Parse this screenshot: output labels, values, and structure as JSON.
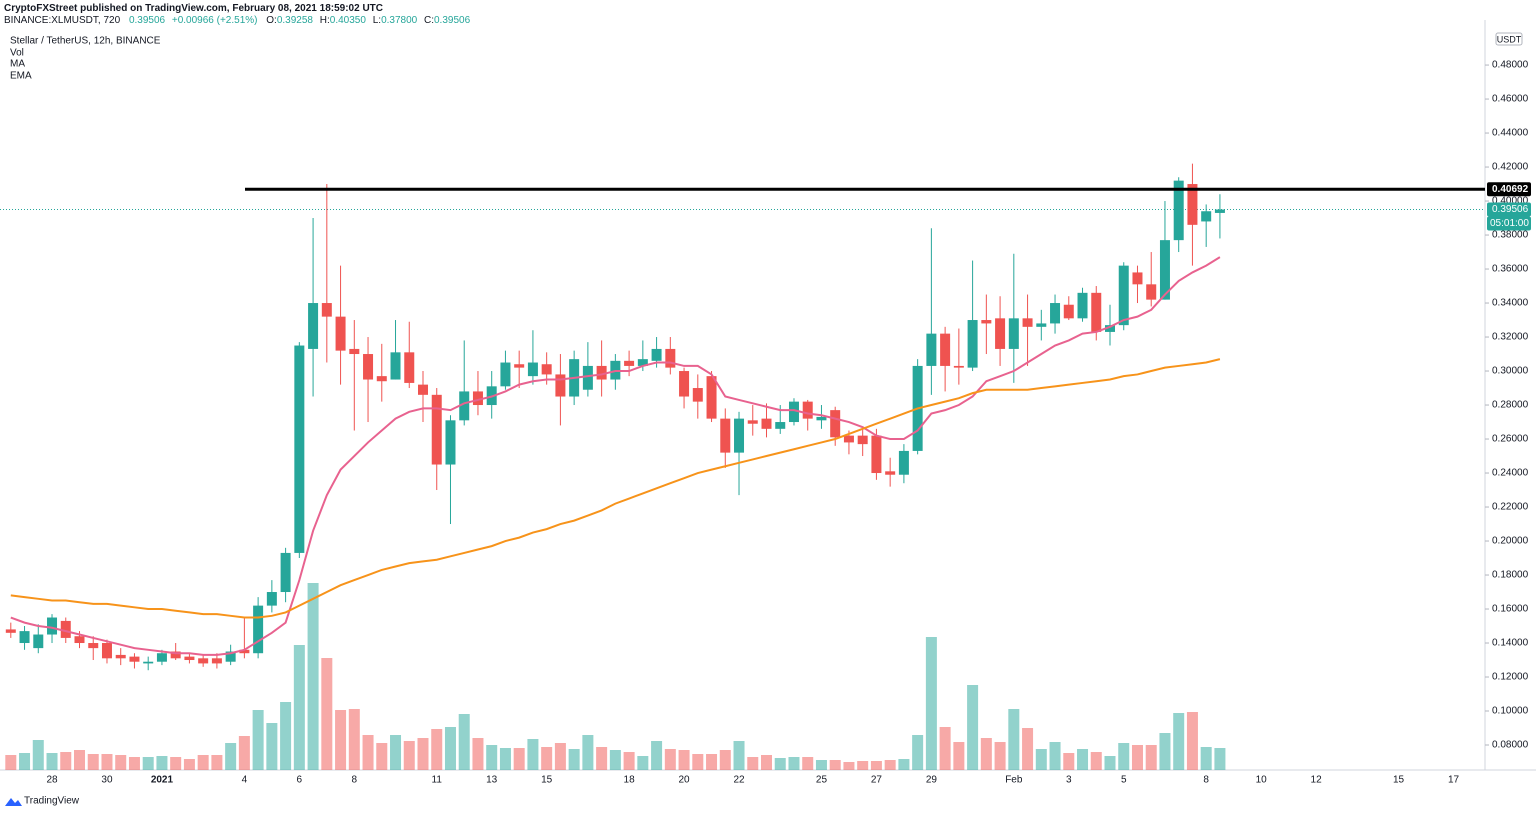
{
  "header": {
    "publisher": "CryptoFXStreet published on TradingView.com, February 08, 2021 18:59:02 UTC",
    "symbol": "BINANCE:XLMUSDT, 720",
    "price": "0.39506",
    "change": "+0.00966 (+2.51%)",
    "ohlc": [
      {
        "label": "O:",
        "value": "0.39258"
      },
      {
        "label": "H:",
        "value": "0.40350"
      },
      {
        "label": "L:",
        "value": "0.37800"
      },
      {
        "label": "C:",
        "value": "0.39506"
      }
    ]
  },
  "footer": {
    "brand": "TradingView"
  },
  "chart_data": {
    "type": "candlestick",
    "title": "Stellar / TetherUS, 12h, BINANCE",
    "volume_label": "Vol",
    "currency": "USDT",
    "up_color": "#26a69a",
    "down_color": "#ef5350",
    "categories": [
      null,
      null,
      null,
      "28",
      null,
      null,
      null,
      "30",
      null,
      null,
      null,
      "2021",
      null,
      null,
      null,
      null,
      null,
      "4",
      null,
      null,
      null,
      "6",
      null,
      null,
      null,
      "8",
      null,
      null,
      null,
      null,
      null,
      "11",
      null,
      null,
      null,
      "13",
      null,
      null,
      null,
      "15",
      null,
      null,
      null,
      null,
      null,
      "18",
      null,
      null,
      null,
      "20",
      null,
      null,
      null,
      "22",
      null,
      null,
      null,
      null,
      null,
      "25",
      null,
      null,
      null,
      "27",
      null,
      null,
      null,
      "29",
      null,
      null,
      null,
      null,
      null,
      "Feb",
      null,
      null,
      null,
      "3",
      null,
      null,
      null,
      "5",
      null,
      null,
      null,
      null,
      null,
      "8",
      null,
      null,
      null,
      "10",
      null,
      null,
      null,
      "12",
      null,
      null,
      null,
      null,
      null,
      "15",
      null,
      null,
      null,
      "17"
    ],
    "open": [
      0.148,
      0.14,
      0.137,
      0.145,
      0.153,
      0.144,
      0.14,
      0.14,
      0.133,
      0.132,
      0.128,
      0.129,
      0.135,
      0.132,
      0.131,
      0.131,
      0.129,
      0.136,
      0.134,
      0.162,
      0.17,
      0.193,
      0.313,
      0.34,
      0.332,
      0.313,
      0.31,
      0.297,
      0.295,
      0.311,
      0.292,
      0.286,
      0.245,
      0.271,
      0.288,
      0.28,
      0.291,
      0.304,
      0.297,
      0.304,
      0.298,
      0.285,
      0.289,
      0.303,
      0.295,
      0.306,
      0.303,
      0.306,
      0.313,
      0.3,
      0.29,
      0.297,
      0.272,
      0.252,
      0.271,
      0.272,
      0.266,
      0.27,
      0.282,
      0.271,
      0.277,
      0.262,
      0.262,
      0.262,
      0.241,
      0.239,
      0.253,
      0.303,
      0.322,
      0.303,
      0.302,
      0.33,
      0.331,
      0.313,
      0.331,
      0.326,
      0.328,
      0.339,
      0.331,
      0.346,
      0.323,
      0.327,
      0.358,
      0.351,
      0.342,
      0.377,
      0.41,
      0.388,
      0.393,
      null,
      null,
      null,
      null,
      null,
      null,
      null,
      null,
      null,
      null,
      null,
      null,
      null,
      null,
      null,
      null,
      null
    ],
    "high": [
      0.152,
      0.15,
      0.151,
      0.157,
      0.155,
      0.147,
      0.144,
      0.142,
      0.137,
      0.134,
      0.132,
      0.136,
      0.14,
      0.134,
      0.133,
      0.134,
      0.139,
      0.155,
      0.167,
      0.177,
      0.196,
      0.317,
      0.39,
      0.41,
      0.362,
      0.33,
      0.32,
      0.316,
      0.33,
      0.329,
      0.3,
      0.29,
      0.274,
      0.318,
      0.3,
      0.3,
      0.312,
      0.312,
      0.324,
      0.311,
      0.31,
      0.312,
      0.317,
      0.318,
      0.31,
      0.312,
      0.318,
      0.32,
      0.32,
      0.302,
      0.298,
      0.3,
      0.278,
      0.276,
      0.28,
      0.281,
      0.28,
      0.284,
      0.283,
      0.28,
      0.279,
      0.265,
      0.266,
      0.266,
      0.249,
      0.257,
      0.307,
      0.384,
      0.326,
      0.325,
      0.365,
      0.345,
      0.344,
      0.369,
      0.345,
      0.336,
      0.345,
      0.344,
      0.349,
      0.35,
      0.339,
      0.364,
      0.362,
      0.37,
      0.4,
      0.414,
      0.422,
      0.398,
      0.404,
      null,
      null,
      null,
      null,
      null,
      null,
      null,
      null,
      null,
      null,
      null,
      null,
      null,
      null,
      null,
      null,
      null
    ],
    "low": [
      0.143,
      0.136,
      0.134,
      0.14,
      0.14,
      0.137,
      0.13,
      0.128,
      0.127,
      0.125,
      0.124,
      0.127,
      0.13,
      0.128,
      0.126,
      0.125,
      0.127,
      0.131,
      0.131,
      0.158,
      0.164,
      0.19,
      0.285,
      0.305,
      0.292,
      0.265,
      0.27,
      0.282,
      0.295,
      0.29,
      0.27,
      0.23,
      0.21,
      0.268,
      0.274,
      0.272,
      0.289,
      0.29,
      0.292,
      0.292,
      0.268,
      0.28,
      0.285,
      0.285,
      0.289,
      0.297,
      0.3,
      0.302,
      0.298,
      0.278,
      0.272,
      0.27,
      0.243,
      0.227,
      0.262,
      0.261,
      0.263,
      0.268,
      0.265,
      0.266,
      0.256,
      0.251,
      0.25,
      0.236,
      0.232,
      0.234,
      0.251,
      0.286,
      0.288,
      0.292,
      0.3,
      0.31,
      0.303,
      0.293,
      0.303,
      0.318,
      0.322,
      0.33,
      0.329,
      0.318,
      0.315,
      0.324,
      0.34,
      0.338,
      0.342,
      0.37,
      0.362,
      0.373,
      0.378,
      null,
      null,
      null,
      null,
      null,
      null,
      null,
      null,
      null,
      null,
      null,
      null,
      null,
      null,
      null,
      null,
      null
    ],
    "close": [
      0.146,
      0.147,
      0.145,
      0.155,
      0.143,
      0.14,
      0.137,
      0.131,
      0.131,
      0.129,
      0.129,
      0.134,
      0.131,
      0.13,
      0.128,
      0.128,
      0.135,
      0.134,
      0.162,
      0.17,
      0.193,
      0.315,
      0.34,
      0.332,
      0.312,
      0.31,
      0.295,
      0.294,
      0.311,
      0.293,
      0.286,
      0.245,
      0.271,
      0.288,
      0.28,
      0.291,
      0.305,
      0.302,
      0.305,
      0.298,
      0.285,
      0.307,
      0.303,
      0.295,
      0.306,
      0.303,
      0.307,
      0.313,
      0.302,
      0.285,
      0.282,
      0.272,
      0.252,
      0.272,
      0.269,
      0.266,
      0.27,
      0.282,
      0.272,
      0.273,
      0.261,
      0.258,
      0.257,
      0.24,
      0.239,
      0.253,
      0.303,
      0.322,
      0.303,
      0.302,
      0.33,
      0.328,
      0.313,
      0.331,
      0.326,
      0.328,
      0.34,
      0.331,
      0.346,
      0.323,
      0.327,
      0.362,
      0.351,
      0.342,
      0.377,
      0.412,
      0.386,
      0.394,
      0.395,
      null,
      null,
      null,
      null,
      null,
      null,
      null,
      null,
      null,
      null,
      null,
      null,
      null,
      null,
      null,
      null,
      null
    ],
    "volume": [
      15,
      17,
      30,
      17,
      18,
      20,
      16,
      16,
      15,
      13,
      13,
      14,
      13,
      11,
      15,
      15,
      27,
      34,
      60,
      47,
      68,
      125,
      187,
      112,
      60,
      61,
      35,
      27,
      35,
      29,
      32,
      41,
      43,
      56,
      32,
      25,
      22,
      22,
      31,
      23,
      27,
      21,
      35,
      23,
      20,
      18,
      14,
      29,
      21,
      20,
      16,
      16,
      20,
      29,
      13,
      15,
      12,
      13,
      13,
      10,
      10,
      8,
      9,
      9,
      10,
      11,
      35,
      133,
      43,
      28,
      85,
      32,
      28,
      61,
      42,
      21,
      28,
      17,
      21,
      18,
      14,
      27,
      25,
      25,
      37,
      57,
      58,
      23,
      22,
      null,
      null,
      null,
      null,
      null,
      null,
      null,
      null,
      null,
      null,
      null,
      null,
      null,
      null,
      null,
      null,
      null
    ],
    "series": [
      {
        "name": "MA",
        "color": "#e8628f",
        "values": [
          0.155,
          0.152,
          0.15,
          0.149,
          0.147,
          0.145,
          0.143,
          0.141,
          0.139,
          0.137,
          0.136,
          0.135,
          0.134,
          0.134,
          0.133,
          0.133,
          0.134,
          0.136,
          0.141,
          0.146,
          0.152,
          0.177,
          0.206,
          0.227,
          0.242,
          0.25,
          0.258,
          0.265,
          0.272,
          0.276,
          0.278,
          0.278,
          0.277,
          0.281,
          0.283,
          0.285,
          0.288,
          0.292,
          0.294,
          0.295,
          0.295,
          0.296,
          0.297,
          0.298,
          0.3,
          0.3,
          0.303,
          0.305,
          0.305,
          0.303,
          0.303,
          0.298,
          0.285,
          0.283,
          0.281,
          0.279,
          0.277,
          0.277,
          0.275,
          0.274,
          0.272,
          0.27,
          0.267,
          0.262,
          0.26,
          0.26,
          0.265,
          0.275,
          0.277,
          0.28,
          0.285,
          0.294,
          0.297,
          0.3,
          0.305,
          0.31,
          0.315,
          0.318,
          0.322,
          0.323,
          0.326,
          0.33,
          0.332,
          0.336,
          0.345,
          0.353,
          0.358,
          0.362,
          0.367,
          null,
          null,
          null,
          null,
          null,
          null,
          null,
          null,
          null,
          null,
          null,
          null,
          null,
          null,
          null,
          null,
          null
        ]
      },
      {
        "name": "EMA",
        "color": "#f7931a",
        "values": [
          0.168,
          0.167,
          0.166,
          0.165,
          0.165,
          0.164,
          0.163,
          0.163,
          0.162,
          0.161,
          0.16,
          0.16,
          0.159,
          0.158,
          0.157,
          0.157,
          0.156,
          0.155,
          0.155,
          0.156,
          0.158,
          0.162,
          0.166,
          0.17,
          0.174,
          0.177,
          0.18,
          0.183,
          0.185,
          0.187,
          0.188,
          0.189,
          0.191,
          0.193,
          0.195,
          0.197,
          0.2,
          0.202,
          0.205,
          0.207,
          0.21,
          0.212,
          0.215,
          0.218,
          0.222,
          0.225,
          0.228,
          0.231,
          0.234,
          0.237,
          0.24,
          0.242,
          0.244,
          0.246,
          0.248,
          0.25,
          0.252,
          0.254,
          0.256,
          0.258,
          0.26,
          0.263,
          0.266,
          0.269,
          0.272,
          0.275,
          0.278,
          0.28,
          0.282,
          0.284,
          0.287,
          0.289,
          0.289,
          0.289,
          0.289,
          0.29,
          0.291,
          0.292,
          0.293,
          0.294,
          0.295,
          0.297,
          0.298,
          0.3,
          0.302,
          0.303,
          0.304,
          0.305,
          0.307,
          null,
          null,
          null,
          null,
          null,
          null,
          null,
          null,
          null,
          null,
          null,
          null,
          null,
          null,
          null,
          null,
          null
        ]
      }
    ],
    "levels": [
      {
        "value": 0.40692,
        "color": "#000000"
      }
    ],
    "last_price": 0.39506,
    "countdown": "05:01:00",
    "ylim": [
      0.0653,
      0.5065
    ],
    "yticks": [
      {
        "value": 0.08,
        "label": "0.08000"
      },
      {
        "value": 0.1,
        "label": "0.10000"
      },
      {
        "value": 0.12,
        "label": "0.12000"
      },
      {
        "value": 0.14,
        "label": "0.14000"
      },
      {
        "value": 0.16,
        "label": "0.16000"
      },
      {
        "value": 0.18,
        "label": "0.18000"
      },
      {
        "value": 0.2,
        "label": "0.20000"
      },
      {
        "value": 0.22,
        "label": "0.22000"
      },
      {
        "value": 0.24,
        "label": "0.24000"
      },
      {
        "value": 0.26,
        "label": "0.26000"
      },
      {
        "value": 0.28,
        "label": "0.28000"
      },
      {
        "value": 0.3,
        "label": "0.30000"
      },
      {
        "value": 0.32,
        "label": "0.32000"
      },
      {
        "value": 0.34,
        "label": "0.34000"
      },
      {
        "value": 0.36,
        "label": "0.36000"
      },
      {
        "value": 0.38,
        "label": "0.38000"
      },
      {
        "value": 0.4,
        "label": "0.40000"
      },
      {
        "value": 0.42,
        "label": "0.42000"
      },
      {
        "value": 0.44,
        "label": "0.44000"
      },
      {
        "value": 0.46,
        "label": "0.46000"
      },
      {
        "value": 0.48,
        "label": "0.48000"
      }
    ],
    "grid": false
  }
}
